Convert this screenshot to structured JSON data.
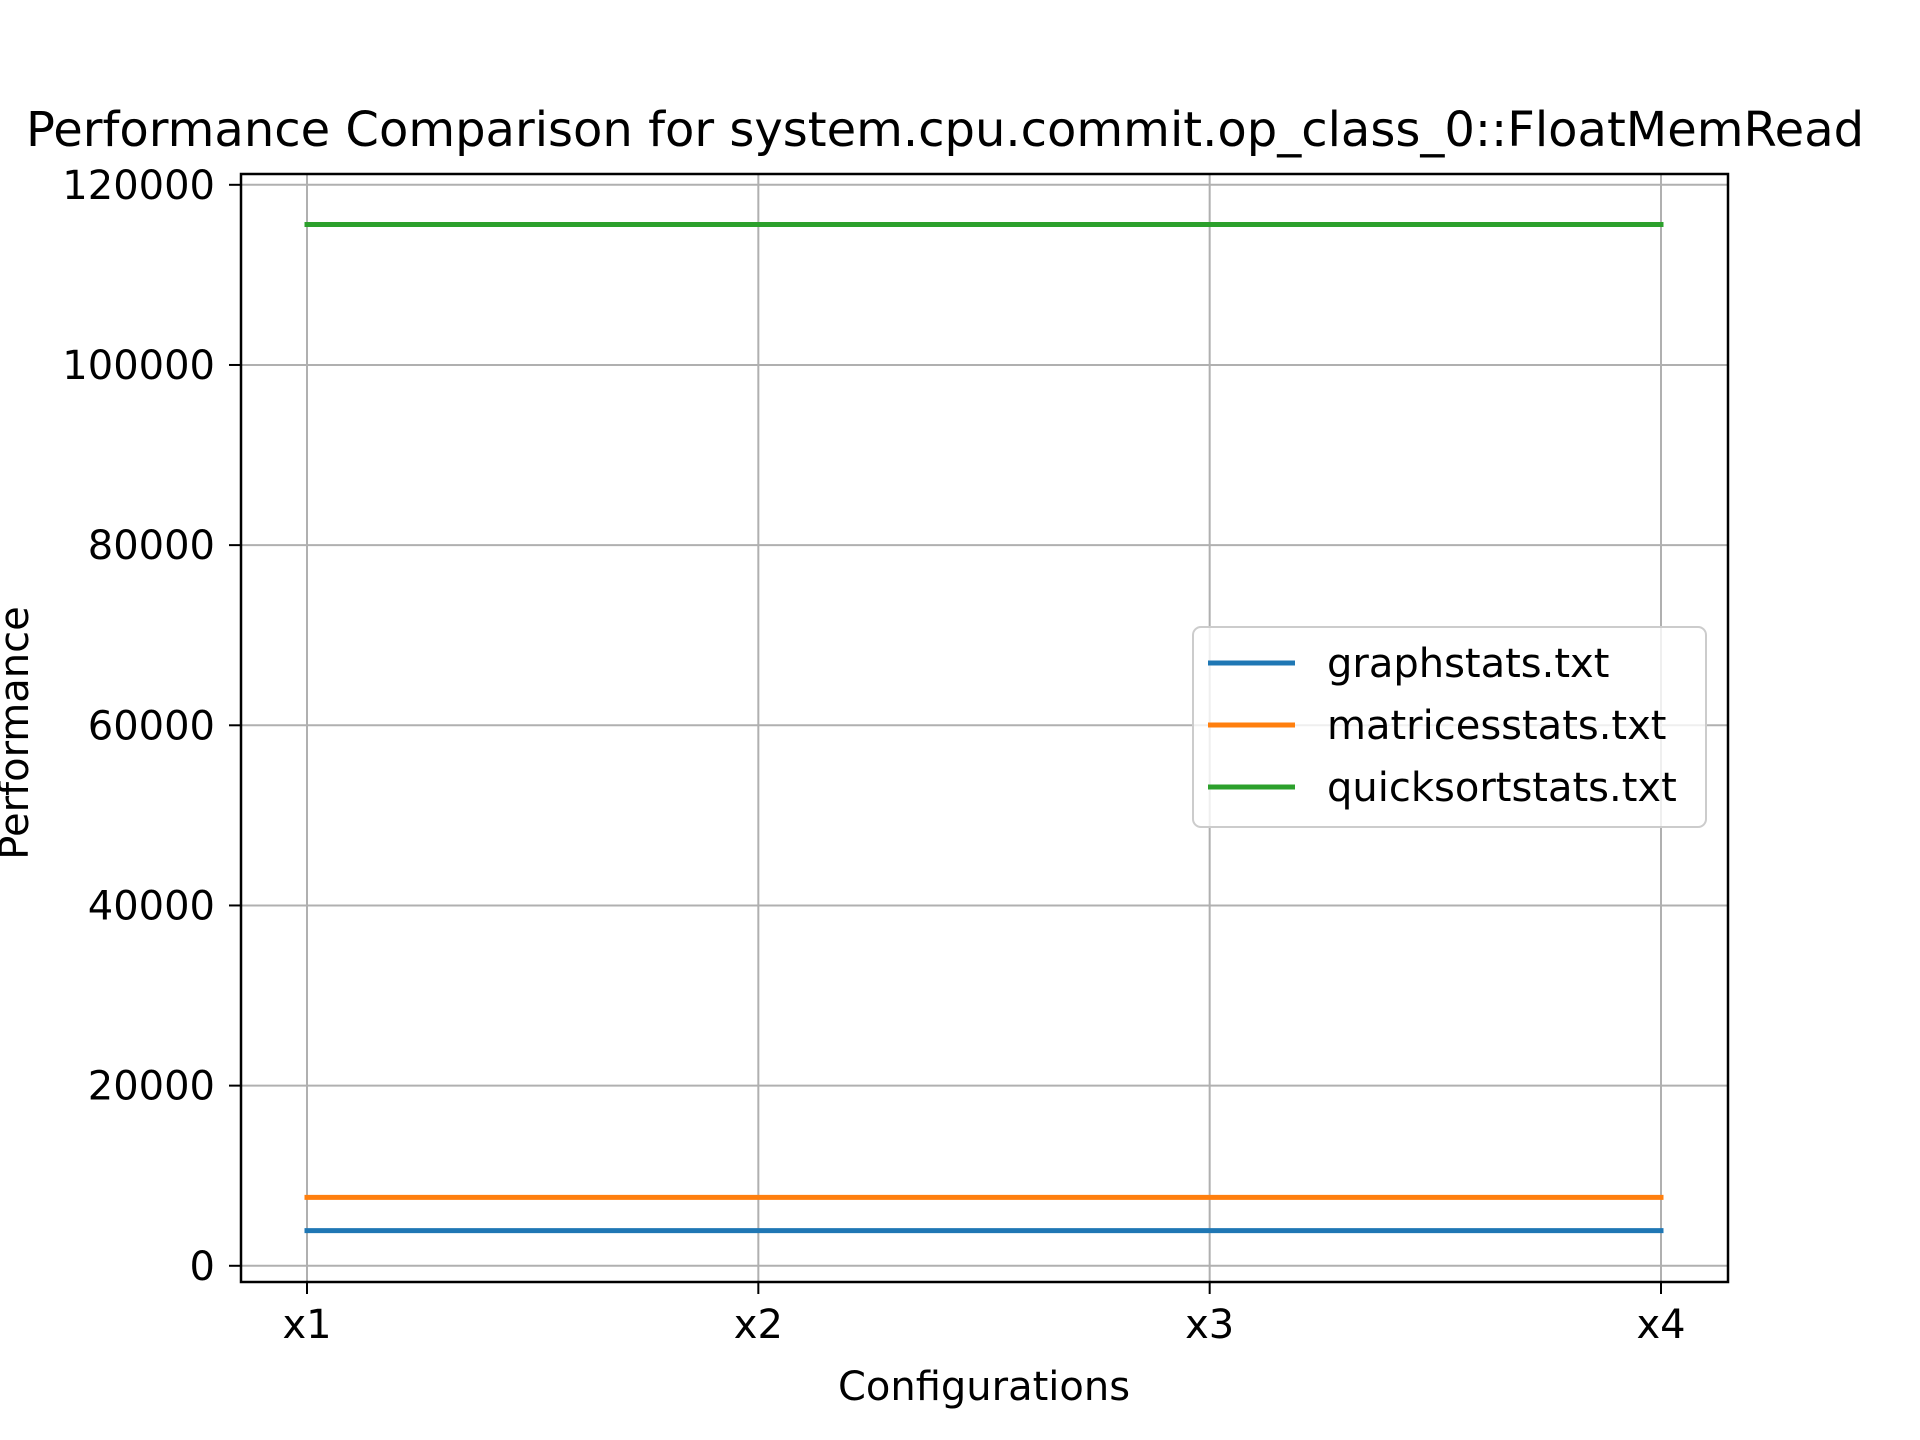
{
  "chart_data": {
    "type": "line",
    "title": "Performance Comparison for system.cpu.commit.op_class_0::FloatMemRead",
    "xlabel": "Configurations",
    "ylabel": "Performance",
    "categories": [
      "x1",
      "x2",
      "x3",
      "x4"
    ],
    "ylim": [
      -1800,
      121200
    ],
    "yticks": [
      0,
      20000,
      40000,
      60000,
      80000,
      100000,
      120000
    ],
    "grid": true,
    "legend_position": "center-right",
    "series": [
      {
        "name": "graphstats.txt",
        "color": "#1f77b4",
        "values": [
          3900,
          3900,
          3900,
          3900
        ]
      },
      {
        "name": "matricesstats.txt",
        "color": "#ff7f0e",
        "values": [
          7600,
          7600,
          7600,
          7600
        ]
      },
      {
        "name": "quicksortstats.txt",
        "color": "#2ca02c",
        "values": [
          115600,
          115600,
          115600,
          115600
        ]
      }
    ]
  }
}
